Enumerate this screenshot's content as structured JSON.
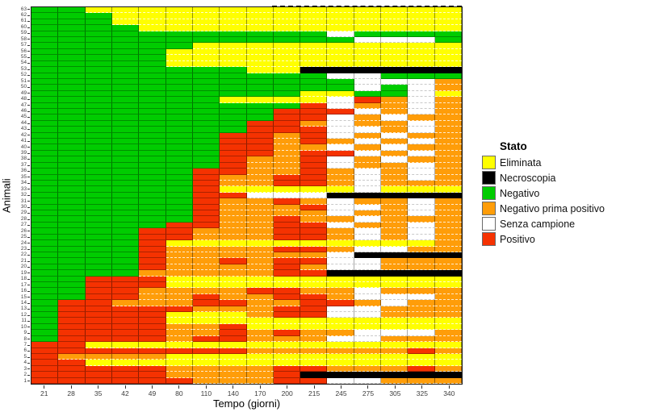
{
  "chart_data": {
    "type": "heatmap",
    "title": "",
    "xlabel": "Tempo (giorni)",
    "ylabel": "Animali",
    "grid": "on",
    "legend_position": "right",
    "x_categories": [
      "21",
      "28",
      "35",
      "42",
      "49",
      "80",
      "110",
      "140",
      "170",
      "200",
      "215",
      "245",
      "275",
      "305",
      "325",
      "340"
    ],
    "y_range": [
      1,
      63
    ],
    "status_codes": {
      "Y": "Eliminata",
      "B": "Necroscopia",
      "G": "Negativo",
      "O": "Negativo prima positivo",
      "W": "Senza campione",
      "R": "Positivo"
    },
    "palette": {
      "Y": "#FFFF00",
      "B": "#000000",
      "G": "#00CC00",
      "O": "#FF9D09",
      "W": "#FFFFFF",
      "R": "#F53201"
    },
    "rows": [
      {
        "animal": 63,
        "cells": "GGYYYYYYYYYYYYYY"
      },
      {
        "animal": 62,
        "cells": "GGGYYYYYYYYYYYYY"
      },
      {
        "animal": 61,
        "cells": "GGGYYYYYYYYYYYYY"
      },
      {
        "animal": 60,
        "cells": "GGGGYYYYYYYYYYYY"
      },
      {
        "animal": 59,
        "cells": "GGGGGGGGGGGWGGGG"
      },
      {
        "animal": 58,
        "cells": "GGGGGGGGGGGGWWWG"
      },
      {
        "animal": 57,
        "cells": "GGGGGGYYYYYYYYYY"
      },
      {
        "animal": 56,
        "cells": "GGGGGYYYYYYYYYYY"
      },
      {
        "animal": 55,
        "cells": "GGGGGYYYYYYYYYYY"
      },
      {
        "animal": 54,
        "cells": "GGGGGYYYYYYYYYYY"
      },
      {
        "animal": 53,
        "cells": "GGGGGGGGYYBBBBBB"
      },
      {
        "animal": 52,
        "cells": "GGGGGGGGGGGWWGGG"
      },
      {
        "animal": 51,
        "cells": "GGGGGGGGGGGGWWWO"
      },
      {
        "animal": 50,
        "cells": "GGGGGGGGGGGGWGWO"
      },
      {
        "animal": 49,
        "cells": "GGGGGGGGGGYYGGWY"
      },
      {
        "animal": 48,
        "cells": "GGGGGGGYYYYWROWO"
      },
      {
        "animal": 47,
        "cells": "GGGGGGGGGGRWOOWO"
      },
      {
        "animal": 46,
        "cells": "GGGGGGGGGRRRWOWO"
      },
      {
        "animal": 45,
        "cells": "GGGGGGGGGRRWOWOO"
      },
      {
        "animal": 44,
        "cells": "GGGGGGGGRROWOOWO"
      },
      {
        "animal": 43,
        "cells": "GGGGGGGGRRRWWOWO"
      },
      {
        "animal": 42,
        "cells": "GGGGGGGRRORWOWOO"
      },
      {
        "animal": 41,
        "cells": "GGGGGGGRROROWOWO"
      },
      {
        "animal": 40,
        "cells": "GGGGGGGRROOWOWOO"
      },
      {
        "animal": 39,
        "cells": "GGGGGGGRRORRWOWO"
      },
      {
        "animal": 38,
        "cells": "GGGGGGGROORWOWOO"
      },
      {
        "animal": 37,
        "cells": "GGGGGGGROORWOOWO"
      },
      {
        "animal": 36,
        "cells": "GGGGGGRROOROWOWO"
      },
      {
        "animal": 35,
        "cells": "GGGGGGROORROWOWO"
      },
      {
        "animal": 34,
        "cells": "GGGGGGROORROWOOO"
      },
      {
        "animal": 33,
        "cells": "GGGGGGRYYYYYWYYY"
      },
      {
        "animal": 32,
        "cells": "GGGGGGRRWWWBBBBB"
      },
      {
        "animal": 31,
        "cells": "GGGGGGROOROWOOWO"
      },
      {
        "animal": 30,
        "cells": "GGGGGGROOORWWOWO"
      },
      {
        "animal": 29,
        "cells": "GGGGGGROOOOWOOWO"
      },
      {
        "animal": 28,
        "cells": "GGGGGGROOROOWOOO"
      },
      {
        "animal": 27,
        "cells": "GGGGGRROORRWOOWO"
      },
      {
        "animal": 26,
        "cells": "GGGGRROOORROWOWO"
      },
      {
        "animal": 25,
        "cells": "GGGGRROOORROWOWO"
      },
      {
        "animal": 24,
        "cells": "GGGGRYYYYYYYYYYO"
      },
      {
        "animal": 23,
        "cells": "GGGGROOOORROWWOO"
      },
      {
        "animal": 22,
        "cells": "GGGGROOOOOOWBBBB"
      },
      {
        "animal": 21,
        "cells": "GGGGROORORRWWOOO"
      },
      {
        "animal": 20,
        "cells": "GGGGROOOOROWWOOO"
      },
      {
        "animal": 19,
        "cells": "GGGGOOOOORRBBBBB"
      },
      {
        "animal": 18,
        "cells": "GGRRRYYYYYYYYYYY"
      },
      {
        "animal": 17,
        "cells": "GGRRRYYYYYYYYYYY"
      },
      {
        "animal": 16,
        "cells": "GGRROOOORROOWOOO"
      },
      {
        "animal": 15,
        "cells": "GGRROOROORROWWWO"
      },
      {
        "animal": 14,
        "cells": "GRROOORROORROWOO"
      },
      {
        "animal": 13,
        "cells": "GRRRRROOORRWWOOO"
      },
      {
        "animal": 12,
        "cells": "GRRRRYYYORRWWOOO"
      },
      {
        "animal": 11,
        "cells": "GRRRRYYYYYYYYYYY"
      },
      {
        "animal": 10,
        "cells": "GRRRROORYYYYYYYY"
      },
      {
        "animal": 9,
        "cells": "GRRRROOROROOWWWO"
      },
      {
        "animal": 8,
        "cells": "GRRRRORROOOWWOOO"
      },
      {
        "animal": 7,
        "cells": "RRYYYYYYYYYYYYYY"
      },
      {
        "animal": 6,
        "cells": "RRRRRRRROOOOOORO"
      },
      {
        "animal": 5,
        "cells": "ROOOOYYYYYYYYYYY"
      },
      {
        "animal": 4,
        "cells": "RRYYYYYYYYYYYYYY"
      },
      {
        "animal": 3,
        "cells": "RRRRROOOORROOORO"
      },
      {
        "animal": 2,
        "cells": "RRRRROOOORBBBBBB"
      },
      {
        "animal": 1,
        "cells": "RRRRRROOORRWWOOO"
      }
    ]
  },
  "axes": {
    "x_title": "Tempo (giorni)",
    "y_title": "Animali"
  },
  "legend": {
    "title": "Stato",
    "entries": [
      {
        "label": "Eliminata",
        "color": "#FFFF00",
        "code": "Y"
      },
      {
        "label": "Necroscopia",
        "color": "#000000",
        "code": "B"
      },
      {
        "label": "Negativo",
        "color": "#00CC00",
        "code": "G"
      },
      {
        "label": "Negativo prima positivo",
        "color": "#FF9D09",
        "code": "O"
      },
      {
        "label": "Senza campione",
        "color": "#FFFFFF",
        "code": "W"
      },
      {
        "label": "Positivo",
        "color": "#F53201",
        "code": "R"
      }
    ]
  }
}
